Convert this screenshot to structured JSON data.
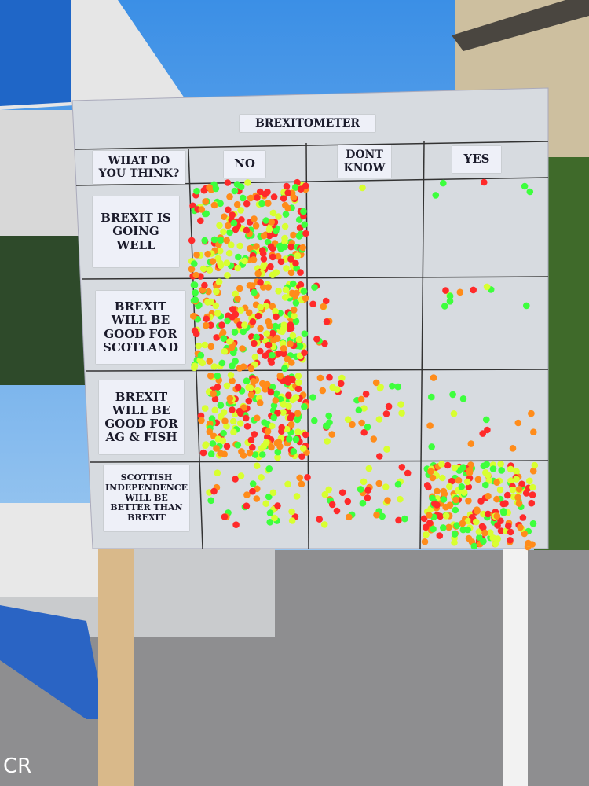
{
  "board": {
    "title": "BREXITOMETER",
    "corner_header": "WHAT DO YOU THINK?",
    "columns": [
      "NO",
      "DONT KNOW",
      "YES"
    ],
    "rows": [
      "BREXIT IS GOING WELL",
      "BREXIT WILL BE GOOD FOR SCOTLAND",
      "BREXIT WILL BE GOOD FOR AG & FISH",
      "SCOTTISH INDEPENDENCE WILL BE BETTER THAN BREXIT"
    ]
  },
  "watermark": "CR"
}
